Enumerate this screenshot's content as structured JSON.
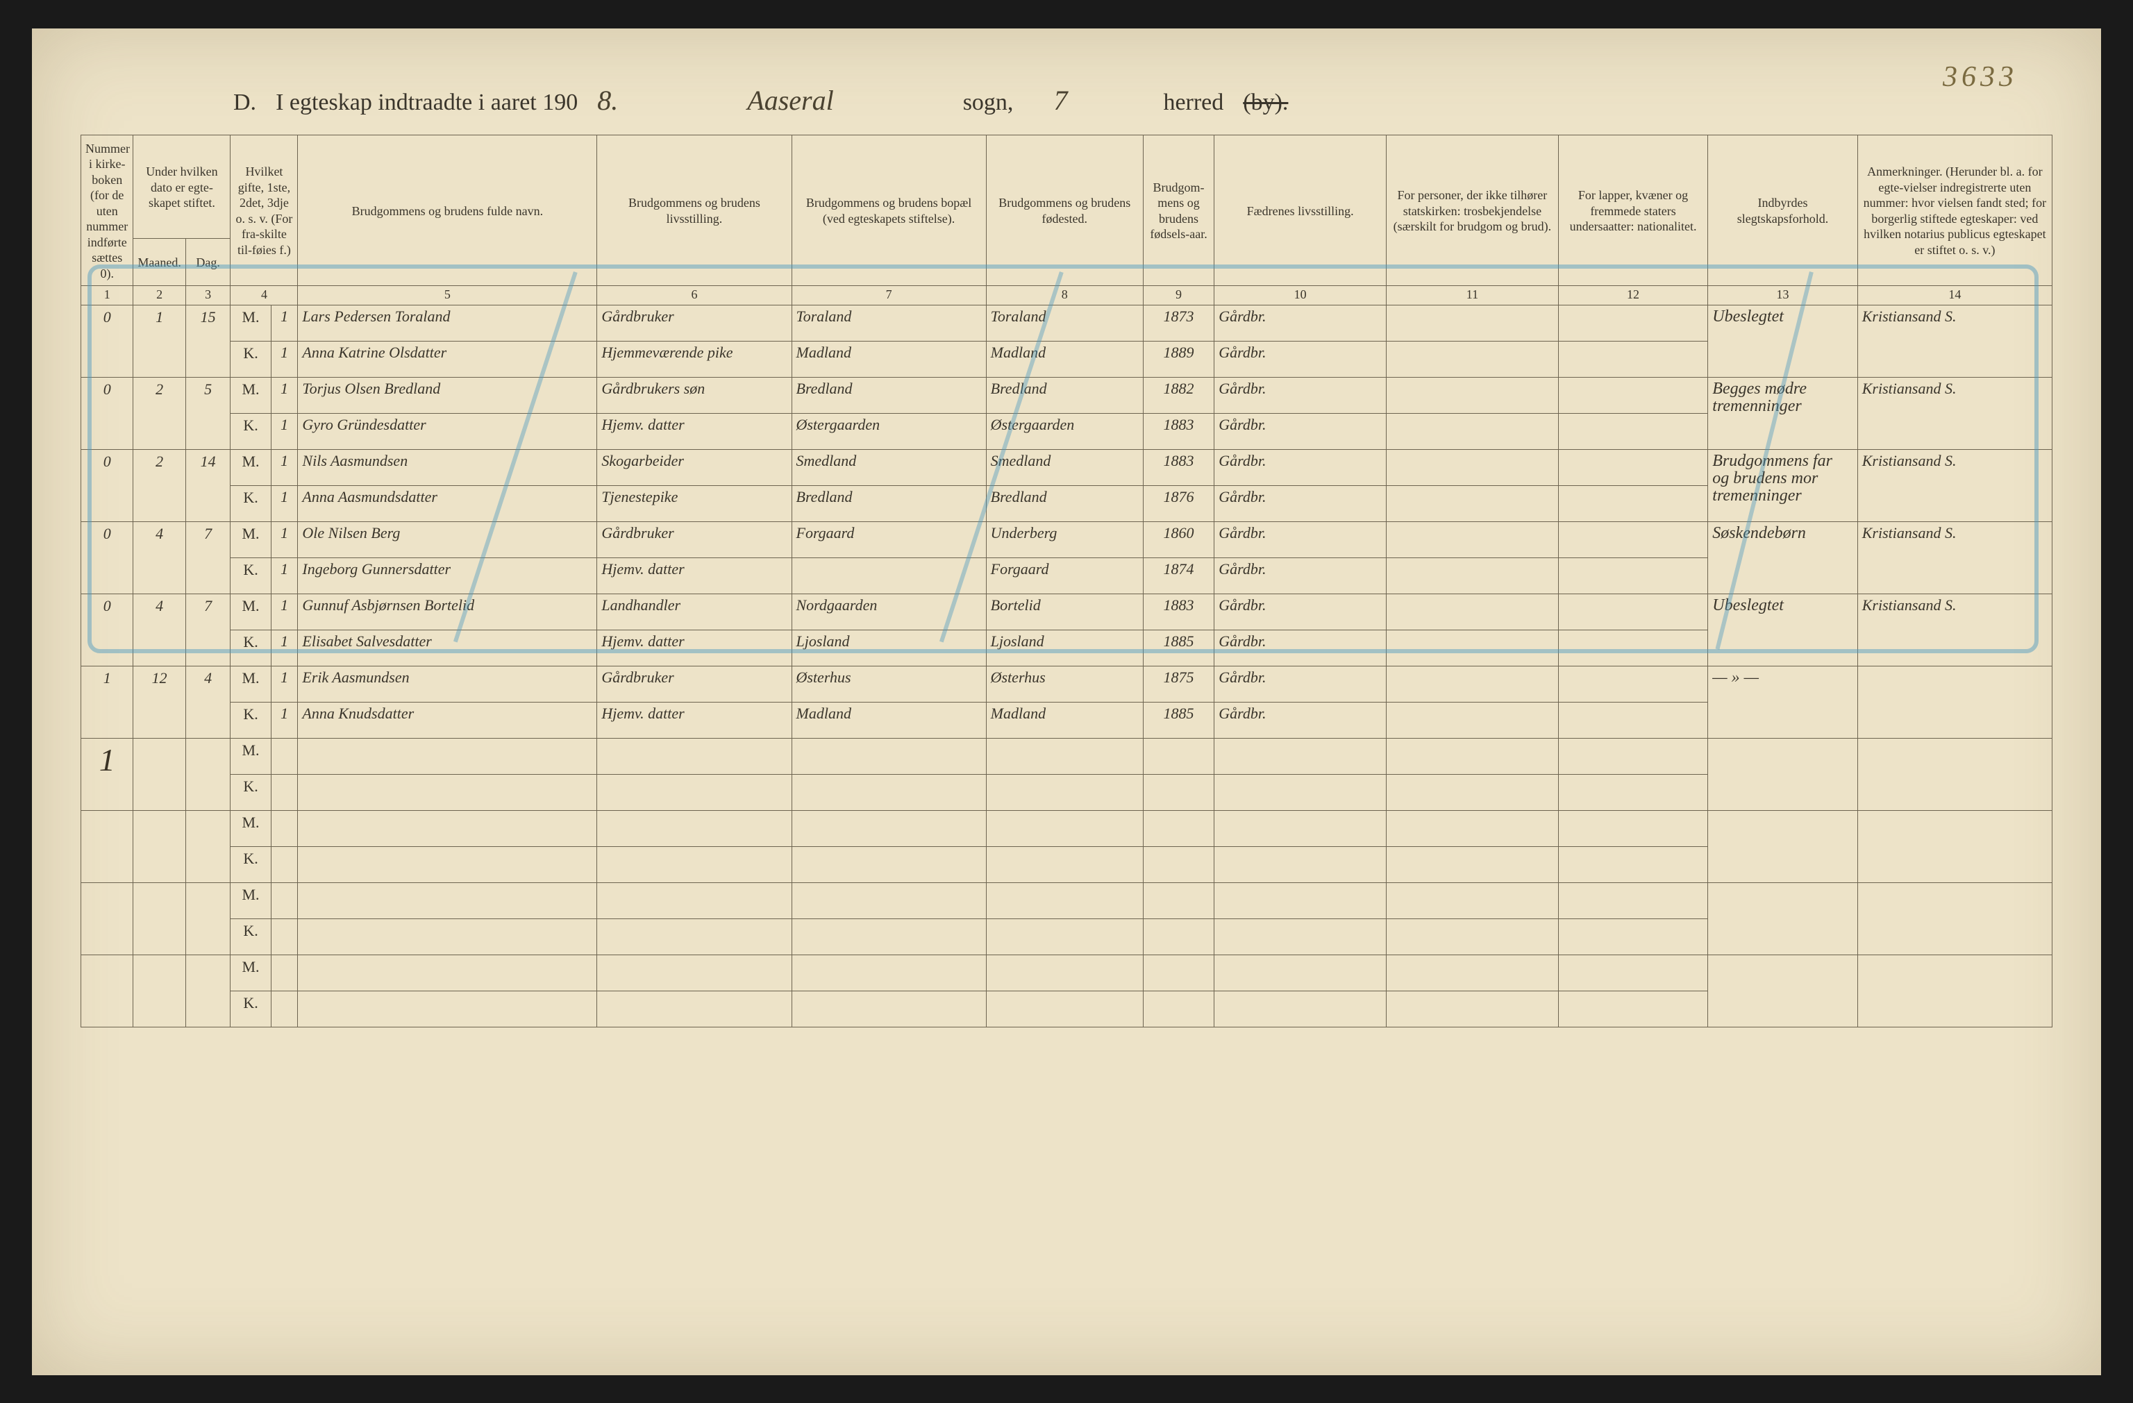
{
  "corner_number": "3633",
  "title": {
    "section": "D.",
    "text_prefix": "I egteskap indtraadte i aaret 190",
    "year_digit": "8.",
    "sogn_hand": "Aaseral",
    "sogn_label": "sogn,",
    "herred_num": "7",
    "herred_label": "herred",
    "strike": "(by)."
  },
  "headers": {
    "c1": "Nummer i kirke-boken (for de uten nummer indførte sættes 0).",
    "c2_group": "Under hvilken dato er egte-skapet stiftet.",
    "c2a": "Maaned.",
    "c2b": "Dag.",
    "c4": "Hvilket gifte, 1ste, 2det, 3dje o. s. v. (For fra-skilte til-føies f.)",
    "c5": "Brudgommens og brudens fulde navn.",
    "c6": "Brudgommens og brudens livsstilling.",
    "c7": "Brudgommens og brudens bopæl (ved egteskapets stiftelse).",
    "c8": "Brudgommens og brudens fødested.",
    "c9": "Brudgom-mens og brudens fødsels-aar.",
    "c10": "Fædrenes livsstilling.",
    "c11": "For personer, der ikke tilhører statskirken: trosbekjendelse (særskilt for brudgom og brud).",
    "c12": "For lapper, kvæner og fremmede staters undersaatter: nationalitet.",
    "c13": "Indbyrdes slegtskapsforhold.",
    "c14": "Anmerkninger. (Herunder bl. a. for egte-vielser indregistrerte uten nummer: hvor vielsen fandt sted; for borgerlig stiftede egteskaper: ved hvilken notarius publicus egteskapet er stiftet o. s. v.)"
  },
  "colnums": [
    "1",
    "2",
    "3",
    "4",
    "5",
    "6",
    "7",
    "8",
    "9",
    "10",
    "11",
    "12",
    "13",
    "14"
  ],
  "mk_labels": {
    "m": "M.",
    "k": "K."
  },
  "left_marks": {
    "row7": "1"
  },
  "rows": [
    {
      "num": "0",
      "maaned": "1",
      "dag": "15",
      "m": {
        "gifte": "1",
        "navn": "Lars Pedersen Toraland",
        "stilling": "Gårdbruker",
        "bopael": "Toraland",
        "fodested": "Toraland",
        "aar": "1873",
        "faedre": "Gårdbr."
      },
      "k": {
        "gifte": "1",
        "navn": "Anna Katrine Olsdatter",
        "stilling": "Hjemmeværende pike",
        "bopael": "Madland",
        "fodested": "Madland",
        "aar": "1889",
        "faedre": "Gårdbr."
      },
      "slegt": "Ubeslegtet",
      "anm": "Kristiansand S."
    },
    {
      "num": "0",
      "maaned": "2",
      "dag": "5",
      "m": {
        "gifte": "1",
        "navn": "Torjus Olsen Bredland",
        "stilling": "Gårdbrukers søn",
        "bopael": "Bredland",
        "fodested": "Bredland",
        "aar": "1882",
        "faedre": "Gårdbr."
      },
      "k": {
        "gifte": "1",
        "navn": "Gyro Gründesdatter",
        "stilling": "Hjemv. datter",
        "bopael": "Østergaarden",
        "fodested": "Østergaarden",
        "aar": "1883",
        "faedre": "Gårdbr."
      },
      "slegt": "Begges mødre tremenninger",
      "anm": "Kristiansand S."
    },
    {
      "num": "0",
      "maaned": "2",
      "dag": "14",
      "m": {
        "gifte": "1",
        "navn": "Nils Aasmundsen",
        "stilling": "Skogarbeider",
        "bopael": "Smedland",
        "fodested": "Smedland",
        "aar": "1883",
        "faedre": "Gårdbr."
      },
      "k": {
        "gifte": "1",
        "navn": "Anna Aasmundsdatter",
        "stilling": "Tjenestepike",
        "bopael": "Bredland",
        "fodested": "Bredland",
        "aar": "1876",
        "faedre": "Gårdbr."
      },
      "slegt": "Brudgommens far og brudens mor tremenninger",
      "anm": "Kristiansand S."
    },
    {
      "num": "0",
      "maaned": "4",
      "dag": "7",
      "m": {
        "gifte": "1",
        "navn": "Ole Nilsen Berg",
        "stilling": "Gårdbruker",
        "bopael": "Forgaard",
        "fodested": "Underberg",
        "aar": "1860",
        "faedre": "Gårdbr."
      },
      "k": {
        "gifte": "1",
        "navn": "Ingeborg Gunnersdatter",
        "stilling": "Hjemv. datter",
        "bopael": "",
        "fodested": "Forgaard",
        "aar": "1874",
        "faedre": "Gårdbr."
      },
      "slegt": "Søskendebørn",
      "anm": "Kristiansand S."
    },
    {
      "num": "0",
      "maaned": "4",
      "dag": "7",
      "m": {
        "gifte": "1",
        "navn": "Gunnuf Asbjørnsen Bortelid",
        "stilling": "Landhandler",
        "bopael": "Nordgaarden",
        "fodested": "Bortelid",
        "aar": "1883",
        "faedre": "Gårdbr."
      },
      "k": {
        "gifte": "1",
        "navn": "Elisabet Salvesdatter",
        "stilling": "Hjemv. datter",
        "bopael": "Ljosland",
        "fodested": "Ljosland",
        "aar": "1885",
        "faedre": "Gårdbr."
      },
      "slegt": "Ubeslegtet",
      "anm": "Kristiansand S."
    },
    {
      "num": "1",
      "maaned": "12",
      "dag": "4",
      "m": {
        "gifte": "1",
        "navn": "Erik Aasmundsen",
        "stilling": "Gårdbruker",
        "bopael": "Østerhus",
        "fodested": "Østerhus",
        "aar": "1875",
        "faedre": "Gårdbr."
      },
      "k": {
        "gifte": "1",
        "navn": "Anna Knudsdatter",
        "stilling": "Hjemv. datter",
        "bopael": "Madland",
        "fodested": "Madland",
        "aar": "1885",
        "faedre": "Gårdbr."
      },
      "slegt": "— » —",
      "anm": ""
    }
  ],
  "styling": {
    "page_bg": "#ede3c8",
    "outer_bg": "#1a1a1a",
    "rule_color": "#6d6450",
    "hand_color": "#3a3224",
    "print_color": "#3a352b",
    "blue_pencil": "rgba(70,150,190,0.45)",
    "header_fontsize_pt": 13,
    "hand_fontsize_pt": 22
  }
}
